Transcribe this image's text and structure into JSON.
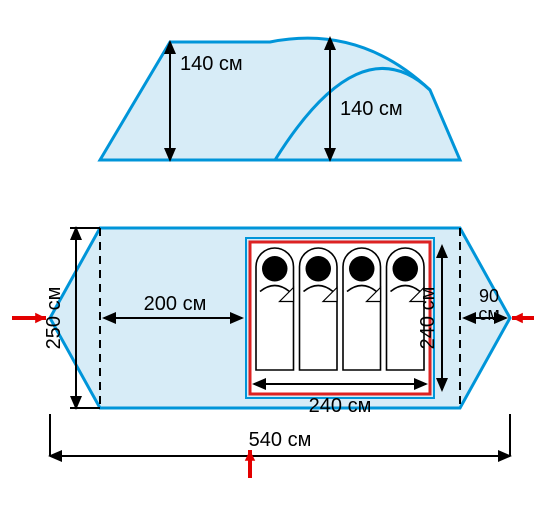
{
  "diagram": {
    "type": "infographic",
    "unit": "см",
    "background_color": "#ffffff",
    "fill_color": "#d7ecf7",
    "outline_color": "#0095d9",
    "outline_width": 3,
    "inner_outline_color": "#d22",
    "text_color": "#000000",
    "dash_pattern": "8 6",
    "label_fontsize": 20,
    "arrow_color_red": "#e30000",
    "side_view": {
      "h_outer": "140 см",
      "h_inner": "140 см"
    },
    "top_view": {
      "height_label": "250 см",
      "vestibule_label": "200 см",
      "inner_w_label": "240 см",
      "inner_h_label": "240 см",
      "end_label": "90 см",
      "total_label": "540 см",
      "sleepers": 4
    }
  }
}
